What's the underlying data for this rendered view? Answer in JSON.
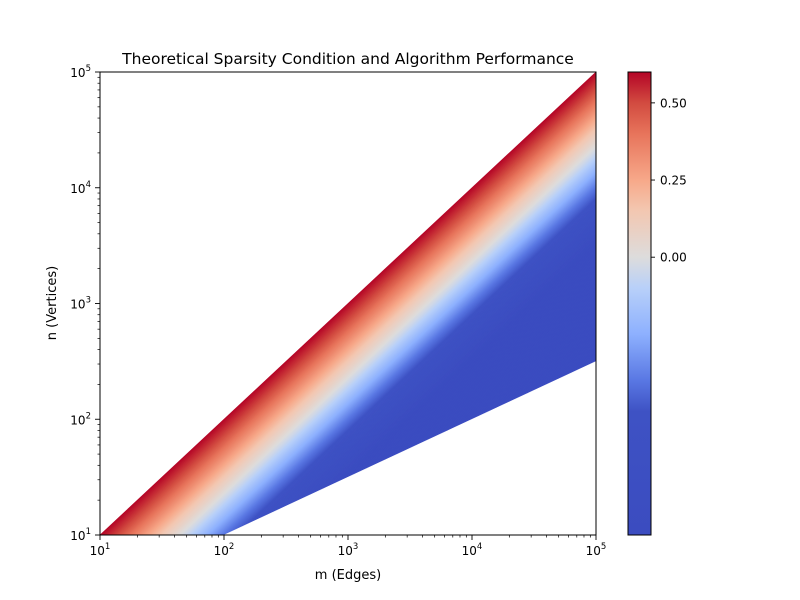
{
  "chart_data": {
    "type": "heatmap",
    "title": "Theoretical Sparsity Condition and Algorithm Performance",
    "xlabel": "m (Edges)",
    "ylabel": "n (Vertices)",
    "x_scale": "log",
    "y_scale": "log",
    "xlim": [
      10,
      100000
    ],
    "ylim": [
      10,
      100000
    ],
    "x_ticks": [
      {
        "value": 10,
        "base": "10",
        "exp": "1"
      },
      {
        "value": 100,
        "base": "10",
        "exp": "2"
      },
      {
        "value": 1000,
        "base": "10",
        "exp": "3"
      },
      {
        "value": 10000,
        "base": "10",
        "exp": "4"
      },
      {
        "value": 100000,
        "base": "10",
        "exp": "5"
      }
    ],
    "y_ticks": [
      {
        "value": 10,
        "base": "10",
        "exp": "1"
      },
      {
        "value": 100,
        "base": "10",
        "exp": "2"
      },
      {
        "value": 1000,
        "base": "10",
        "exp": "3"
      },
      {
        "value": 10000,
        "base": "10",
        "exp": "4"
      },
      {
        "value": 100000,
        "base": "10",
        "exp": "5"
      }
    ],
    "region": {
      "upper_boundary": "n = m",
      "lower_boundary": "n = sqrt(m)",
      "lower_boundary_points": [
        [
          100,
          10
        ],
        [
          1000,
          31.6
        ],
        [
          10000,
          100
        ],
        [
          100000,
          316
        ]
      ]
    },
    "gradient_profile": [
      {
        "n_over_m": 1.0,
        "value": 0.6
      },
      {
        "n_over_m": 0.71,
        "value": 0.5
      },
      {
        "n_over_m": 0.5,
        "value": 0.35
      },
      {
        "n_over_m": 0.32,
        "value": 0.15
      },
      {
        "n_over_m": 0.2,
        "value": -0.05
      },
      {
        "n_over_m": 0.1,
        "value": -0.4
      },
      {
        "n_over_m": 0.05,
        "value": -0.7
      },
      {
        "n_over_m": 0.0316,
        "value": -0.9
      }
    ],
    "colormap": "coolwarm",
    "colorbar": {
      "vmin": -0.9,
      "vmax": 0.6,
      "ticks": [
        {
          "value": 0.5,
          "label": "0.50"
        },
        {
          "value": 0.25,
          "label": "0.25"
        },
        {
          "value": 0.0,
          "label": "0.00"
        }
      ],
      "stops": [
        {
          "value": -0.9,
          "color": "#3b4cc0"
        },
        {
          "value": -0.5,
          "color": "#3e52c4"
        },
        {
          "value": -0.4,
          "color": "#5977e3"
        },
        {
          "value": -0.25,
          "color": "#8db0fe"
        },
        {
          "value": -0.1,
          "color": "#b8d0f9"
        },
        {
          "value": 0.0,
          "color": "#dddcdc"
        },
        {
          "value": 0.15,
          "color": "#f3c7b1"
        },
        {
          "value": 0.25,
          "color": "#f7a889"
        },
        {
          "value": 0.4,
          "color": "#e7745b"
        },
        {
          "value": 0.5,
          "color": "#d24b40"
        },
        {
          "value": 0.6,
          "color": "#b40426"
        }
      ]
    },
    "grid": false,
    "legend": "none"
  }
}
